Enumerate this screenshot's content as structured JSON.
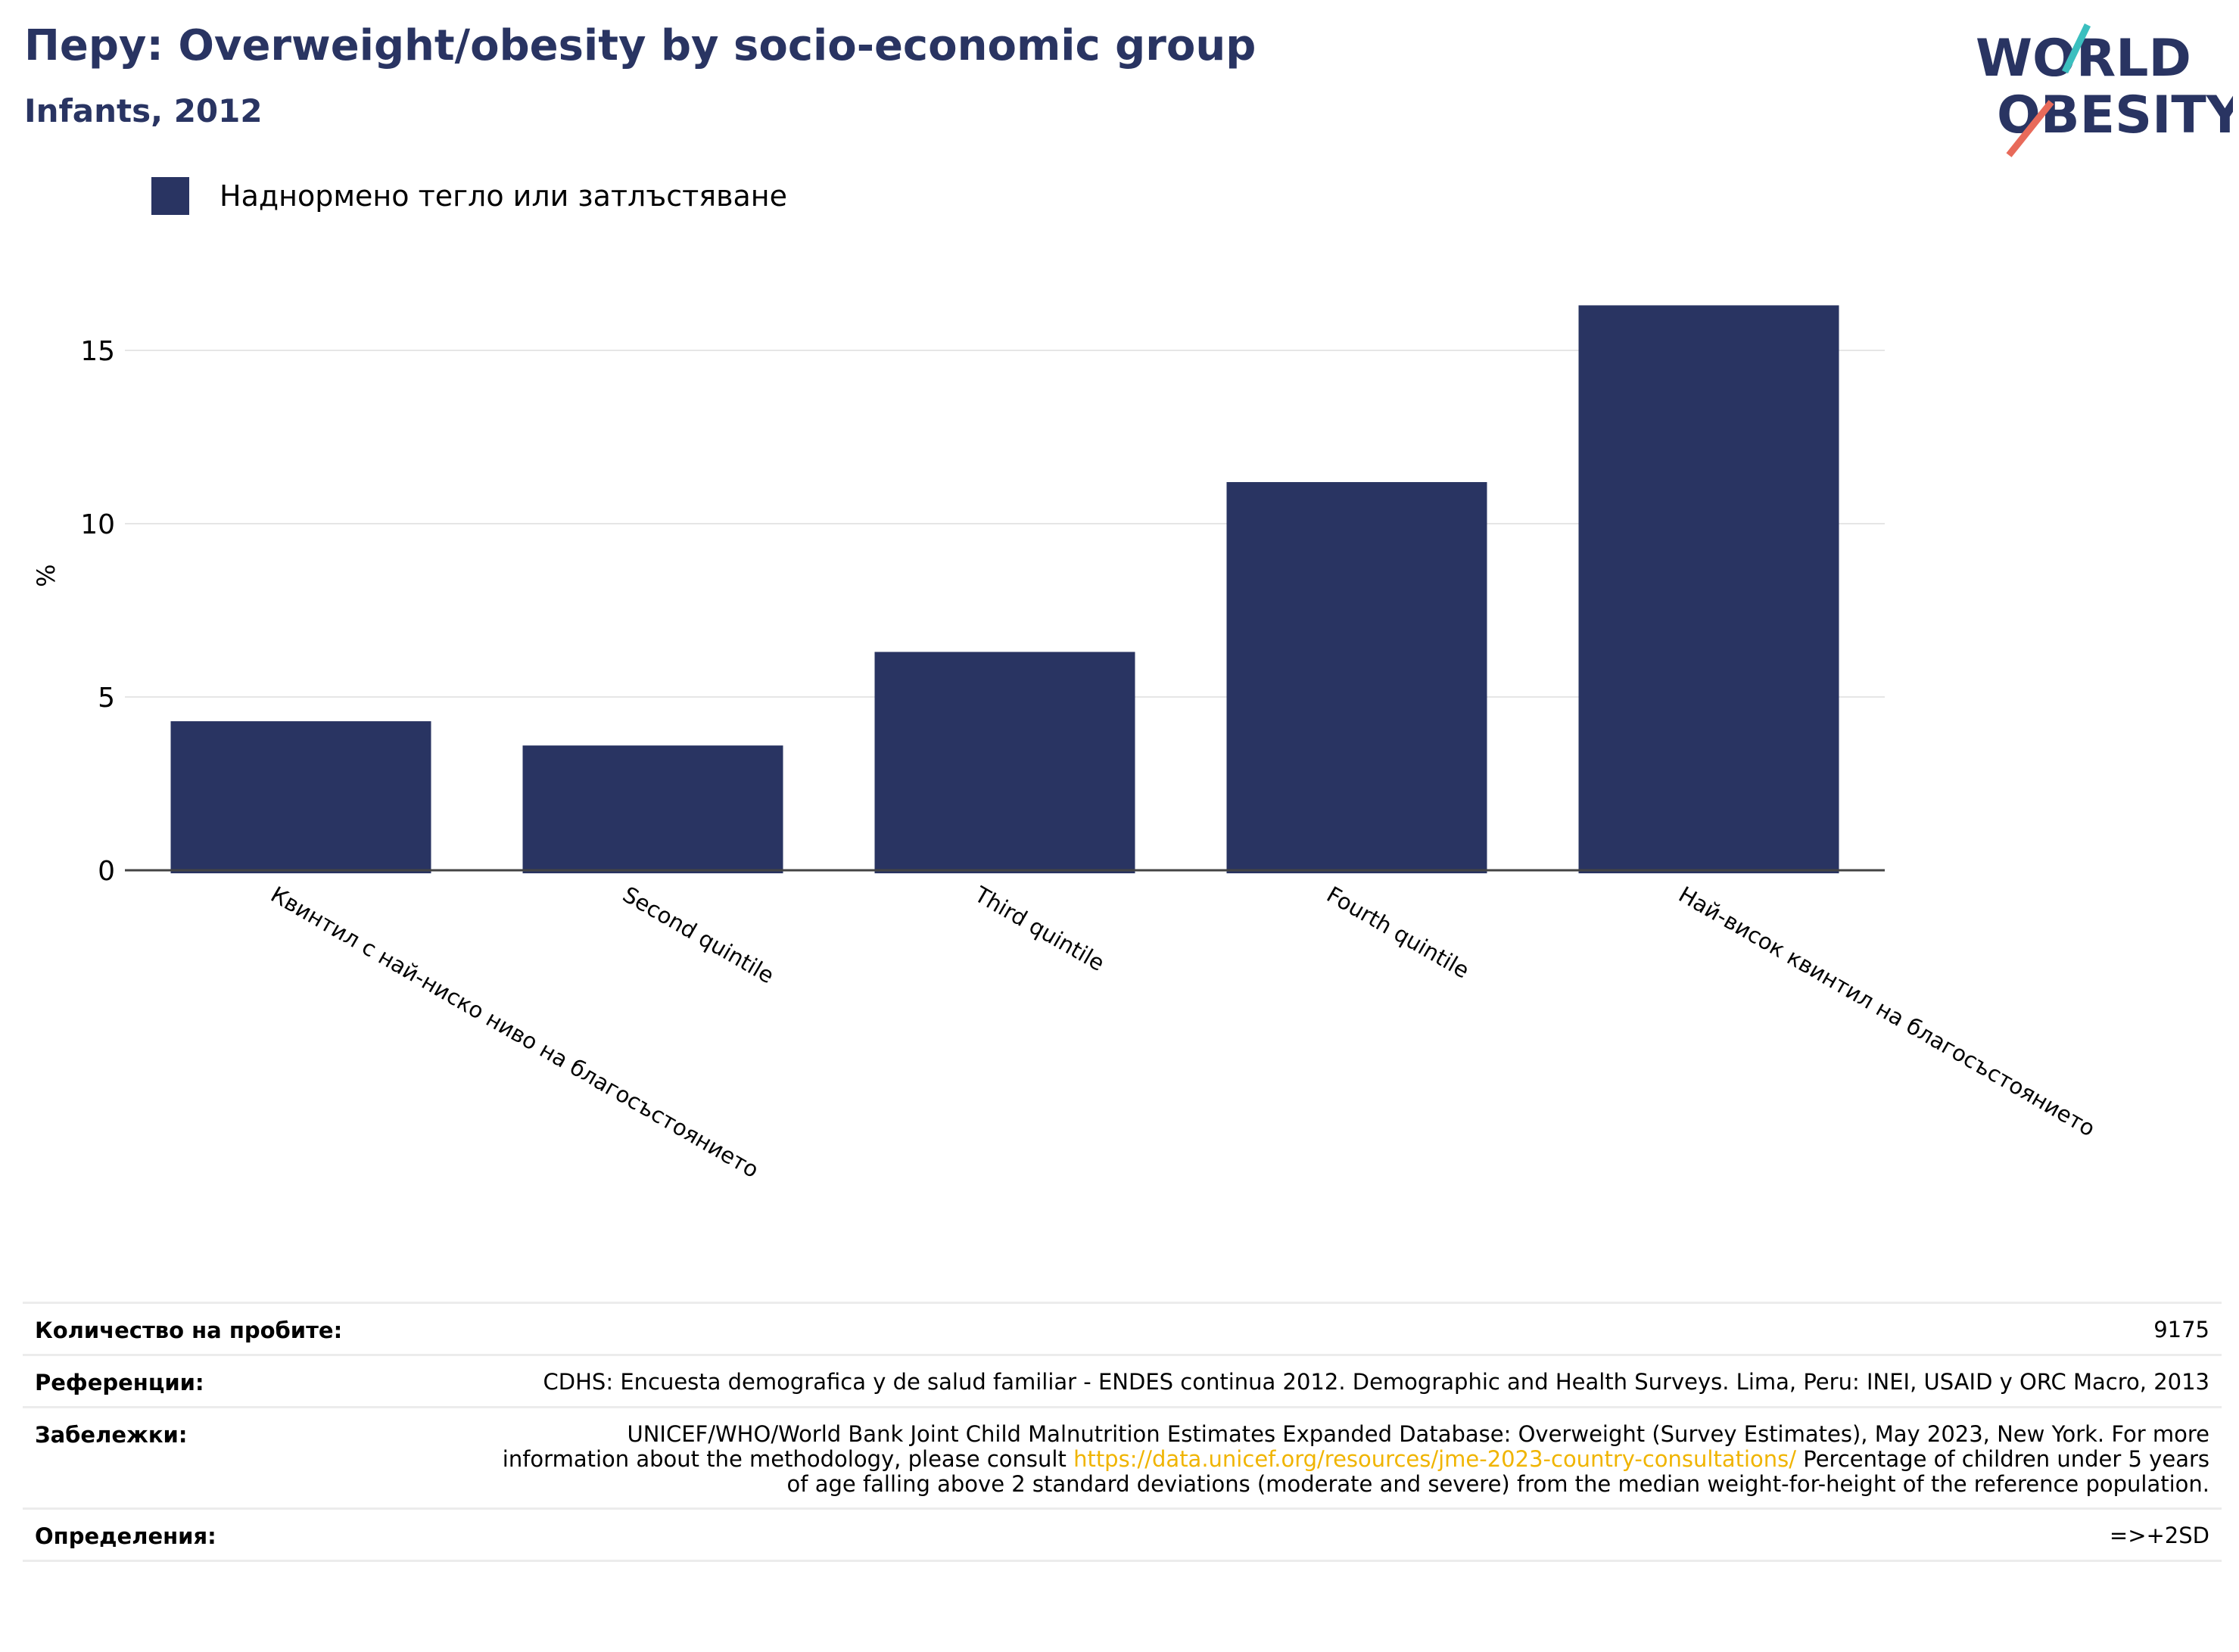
{
  "title": "Перу: Overweight/obesity by socio-economic group",
  "subtitle": "Infants, 2012",
  "logo": {
    "line1": "WORLD",
    "line2": "OBESITY",
    "colors": {
      "text": "#293462",
      "slash_top": "#3bbfbf",
      "slash_bottom": "#e86a5a"
    }
  },
  "legend": {
    "label": "Наднормено тегло или затлъстяване",
    "color": "#293462"
  },
  "chart_data": {
    "type": "bar",
    "categories": [
      "Квинтил с най-ниско ниво на благосъстоянието",
      "Second quintile",
      "Third quintile",
      "Fourth quintile",
      "Най-висок квинтил на благосъстоянието"
    ],
    "series": [
      {
        "name": "Наднормено тегло или затлъстяване",
        "values": [
          4.3,
          3.6,
          6.3,
          11.2,
          16.3
        ],
        "color": "#293462"
      }
    ],
    "ylabel": "%",
    "ylim": [
      0,
      17
    ],
    "yticks": [
      0,
      5,
      10,
      15
    ],
    "grid": true
  },
  "info": {
    "sample_label": "Количество на пробите:",
    "sample_value": "9175",
    "references_label": "Референции:",
    "references_value": "CDHS: Encuesta demografica y de salud familiar - ENDES continua 2012. Demographic and Health Surveys. Lima, Peru: INEI, USAID y ORC Macro, 2013",
    "notes_label": "Забележки:",
    "notes_before": "UNICEF/WHO/World Bank Joint Child Malnutrition Estimates Expanded Database: Overweight (Survey Estimates), May 2023, New York. For more information about the methodology, please consult ",
    "notes_link": "https://data.unicef.org/resources/jme-2023-country-consultations/",
    "notes_after": " Percentage of children under 5 years of age falling above 2 standard deviations (moderate and severe) from the median weight-for-height of the reference population.",
    "definitions_label": "Определения:",
    "definitions_value": "=>+2SD"
  }
}
